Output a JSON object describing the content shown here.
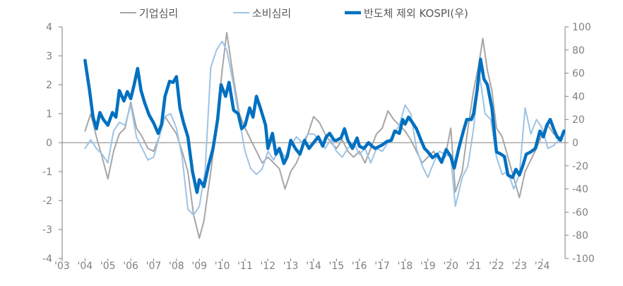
{
  "chart_data": {
    "type": "line",
    "title": "",
    "xlabel": "",
    "ylabel_left": "",
    "ylabel_right": "",
    "x_tick_labels": [
      "'03",
      "'04",
      "'05",
      "'06",
      "'07",
      "'08",
      "'09",
      "'10",
      "'11",
      "'12",
      "'13",
      "'14",
      "'15",
      "'16",
      "'17",
      "'18",
      "'19",
      "'20",
      "'21",
      "'22",
      "'23",
      "'24"
    ],
    "x_range": [
      2003,
      2025
    ],
    "y_left": {
      "ticks": [
        4,
        3,
        2,
        1,
        0,
        -1,
        -2,
        -3,
        -4
      ],
      "range": [
        -4,
        4
      ]
    },
    "y_right": {
      "ticks": [
        100,
        80,
        60,
        40,
        20,
        0,
        -20,
        -40,
        -60,
        -80,
        -100
      ],
      "range": [
        -100,
        100
      ]
    },
    "grid": false,
    "zero_line": true,
    "legend_position": "top",
    "series": [
      {
        "name": "기업심리",
        "axis": "left",
        "color": "#a6a6a6",
        "width": 2,
        "points": [
          [
            2004.0,
            0.4
          ],
          [
            2004.25,
            1.0
          ],
          [
            2004.5,
            0.2
          ],
          [
            2004.75,
            -0.5
          ],
          [
            2005.0,
            -1.25
          ],
          [
            2005.25,
            -0.3
          ],
          [
            2005.5,
            0.3
          ],
          [
            2005.75,
            0.5
          ],
          [
            2006.0,
            1.4
          ],
          [
            2006.25,
            0.5
          ],
          [
            2006.5,
            0.2
          ],
          [
            2006.75,
            -0.2
          ],
          [
            2007.0,
            -0.3
          ],
          [
            2007.25,
            0.2
          ],
          [
            2007.5,
            0.9
          ],
          [
            2007.75,
            0.6
          ],
          [
            2008.0,
            0.3
          ],
          [
            2008.25,
            -0.3
          ],
          [
            2008.5,
            -1.0
          ],
          [
            2008.75,
            -2.5
          ],
          [
            2009.0,
            -3.3
          ],
          [
            2009.2,
            -2.7
          ],
          [
            2009.5,
            -1.0
          ],
          [
            2009.75,
            0.5
          ],
          [
            2010.0,
            2.5
          ],
          [
            2010.2,
            3.8
          ],
          [
            2010.5,
            2.2
          ],
          [
            2010.75,
            1.0
          ],
          [
            2011.0,
            0.5
          ],
          [
            2011.25,
            0.1
          ],
          [
            2011.5,
            -0.3
          ],
          [
            2011.75,
            -0.7
          ],
          [
            2012.0,
            -0.5
          ],
          [
            2012.25,
            -0.7
          ],
          [
            2012.5,
            -0.9
          ],
          [
            2012.75,
            -1.6
          ],
          [
            2013.0,
            -1.0
          ],
          [
            2013.25,
            -0.7
          ],
          [
            2013.5,
            -0.2
          ],
          [
            2013.75,
            0.3
          ],
          [
            2014.0,
            0.9
          ],
          [
            2014.25,
            0.7
          ],
          [
            2014.5,
            0.3
          ],
          [
            2014.75,
            0.0
          ],
          [
            2015.0,
            -0.2
          ],
          [
            2015.25,
            0.1
          ],
          [
            2015.5,
            -0.3
          ],
          [
            2015.75,
            -0.5
          ],
          [
            2016.0,
            -0.3
          ],
          [
            2016.25,
            -0.7
          ],
          [
            2016.5,
            -0.2
          ],
          [
            2016.75,
            0.3
          ],
          [
            2017.0,
            0.5
          ],
          [
            2017.25,
            1.1
          ],
          [
            2017.5,
            0.8
          ],
          [
            2017.75,
            0.6
          ],
          [
            2018.0,
            0.4
          ],
          [
            2018.25,
            0.1
          ],
          [
            2018.5,
            -0.3
          ],
          [
            2018.75,
            -0.7
          ],
          [
            2019.0,
            -0.5
          ],
          [
            2019.25,
            -0.3
          ],
          [
            2019.5,
            -0.6
          ],
          [
            2019.75,
            -0.5
          ],
          [
            2020.0,
            0.5
          ],
          [
            2020.2,
            -1.7
          ],
          [
            2020.5,
            -1.0
          ],
          [
            2020.75,
            0.5
          ],
          [
            2021.0,
            1.8
          ],
          [
            2021.25,
            2.8
          ],
          [
            2021.4,
            3.6
          ],
          [
            2021.6,
            2.5
          ],
          [
            2021.8,
            1.8
          ],
          [
            2022.0,
            0.5
          ],
          [
            2022.25,
            0.2
          ],
          [
            2022.5,
            -0.5
          ],
          [
            2022.75,
            -1.2
          ],
          [
            2023.0,
            -1.9
          ],
          [
            2023.25,
            -1.0
          ],
          [
            2023.5,
            -0.6
          ],
          [
            2023.75,
            -0.2
          ],
          [
            2024.0,
            0.3
          ],
          [
            2024.25,
            0.6
          ],
          [
            2024.5,
            0.3
          ],
          [
            2024.75,
            0.2
          ]
        ]
      },
      {
        "name": "소비심리",
        "axis": "left",
        "color": "#9dc3e6",
        "width": 2,
        "points": [
          [
            2004.0,
            -0.2
          ],
          [
            2004.25,
            0.1
          ],
          [
            2004.5,
            -0.2
          ],
          [
            2004.75,
            -0.4
          ],
          [
            2005.0,
            -0.7
          ],
          [
            2005.25,
            0.4
          ],
          [
            2005.5,
            0.7
          ],
          [
            2005.75,
            0.6
          ],
          [
            2006.0,
            1.3
          ],
          [
            2006.25,
            0.2
          ],
          [
            2006.5,
            -0.2
          ],
          [
            2006.75,
            -0.6
          ],
          [
            2007.0,
            -0.5
          ],
          [
            2007.25,
            0.2
          ],
          [
            2007.5,
            0.9
          ],
          [
            2007.75,
            1.0
          ],
          [
            2008.0,
            0.5
          ],
          [
            2008.25,
            -0.5
          ],
          [
            2008.5,
            -2.3
          ],
          [
            2008.75,
            -2.5
          ],
          [
            2009.0,
            -2.2
          ],
          [
            2009.25,
            -1.0
          ],
          [
            2009.5,
            2.6
          ],
          [
            2009.75,
            3.2
          ],
          [
            2010.0,
            3.5
          ],
          [
            2010.2,
            3.2
          ],
          [
            2010.5,
            2.0
          ],
          [
            2010.75,
            0.8
          ],
          [
            2011.0,
            -0.3
          ],
          [
            2011.25,
            -0.9
          ],
          [
            2011.5,
            -1.1
          ],
          [
            2011.75,
            -0.9
          ],
          [
            2012.0,
            -0.3
          ],
          [
            2012.25,
            -0.6
          ],
          [
            2012.5,
            -0.2
          ],
          [
            2012.75,
            -0.5
          ],
          [
            2013.0,
            -0.1
          ],
          [
            2013.25,
            0.2
          ],
          [
            2013.5,
            0.0
          ],
          [
            2013.75,
            0.3
          ],
          [
            2014.0,
            0.3
          ],
          [
            2014.25,
            0.1
          ],
          [
            2014.5,
            -0.2
          ],
          [
            2014.75,
            0.1
          ],
          [
            2015.0,
            -0.3
          ],
          [
            2015.25,
            -0.5
          ],
          [
            2015.5,
            -0.2
          ],
          [
            2015.75,
            0.0
          ],
          [
            2016.0,
            -0.4
          ],
          [
            2016.25,
            -0.2
          ],
          [
            2016.5,
            -0.7
          ],
          [
            2016.75,
            -0.2
          ],
          [
            2017.0,
            -0.3
          ],
          [
            2017.25,
            0.0
          ],
          [
            2017.5,
            0.3
          ],
          [
            2017.75,
            0.6
          ],
          [
            2018.0,
            1.3
          ],
          [
            2018.25,
            1.0
          ],
          [
            2018.5,
            -0.2
          ],
          [
            2018.75,
            -0.8
          ],
          [
            2019.0,
            -1.2
          ],
          [
            2019.25,
            -0.7
          ],
          [
            2019.5,
            -0.3
          ],
          [
            2019.75,
            -0.4
          ],
          [
            2020.0,
            -0.5
          ],
          [
            2020.2,
            -2.2
          ],
          [
            2020.5,
            -1.2
          ],
          [
            2020.75,
            -0.8
          ],
          [
            2021.0,
            0.5
          ],
          [
            2021.25,
            2.4
          ],
          [
            2021.5,
            1.0
          ],
          [
            2021.75,
            0.8
          ],
          [
            2022.0,
            -0.5
          ],
          [
            2022.25,
            -1.1
          ],
          [
            2022.5,
            -1.0
          ],
          [
            2022.75,
            -1.6
          ],
          [
            2023.0,
            -1.1
          ],
          [
            2023.25,
            1.2
          ],
          [
            2023.5,
            0.3
          ],
          [
            2023.75,
            0.8
          ],
          [
            2024.0,
            0.5
          ],
          [
            2024.25,
            -0.2
          ],
          [
            2024.5,
            -0.1
          ],
          [
            2024.75,
            0.1
          ]
        ]
      },
      {
        "name": "반도체 제외 KOSPI(우)",
        "axis": "right",
        "color": "#0070c0",
        "width": 4.5,
        "points": [
          [
            2004.0,
            71
          ],
          [
            2004.2,
            45
          ],
          [
            2004.35,
            22
          ],
          [
            2004.5,
            12
          ],
          [
            2004.65,
            26
          ],
          [
            2004.8,
            20
          ],
          [
            2005.0,
            15
          ],
          [
            2005.2,
            26
          ],
          [
            2005.35,
            22
          ],
          [
            2005.5,
            45
          ],
          [
            2005.7,
            36
          ],
          [
            2005.85,
            44
          ],
          [
            2006.0,
            38
          ],
          [
            2006.15,
            50
          ],
          [
            2006.3,
            64
          ],
          [
            2006.45,
            45
          ],
          [
            2006.6,
            35
          ],
          [
            2006.8,
            24
          ],
          [
            2007.0,
            17
          ],
          [
            2007.2,
            8
          ],
          [
            2007.35,
            16
          ],
          [
            2007.5,
            40
          ],
          [
            2007.7,
            53
          ],
          [
            2007.85,
            52
          ],
          [
            2008.0,
            57
          ],
          [
            2008.15,
            30
          ],
          [
            2008.3,
            18
          ],
          [
            2008.5,
            5
          ],
          [
            2008.7,
            -25
          ],
          [
            2008.9,
            -43
          ],
          [
            2009.0,
            -32
          ],
          [
            2009.2,
            -38
          ],
          [
            2009.4,
            -20
          ],
          [
            2009.6,
            -5
          ],
          [
            2009.8,
            20
          ],
          [
            2009.95,
            50
          ],
          [
            2010.15,
            40
          ],
          [
            2010.3,
            52
          ],
          [
            2010.5,
            28
          ],
          [
            2010.7,
            25
          ],
          [
            2010.85,
            12
          ],
          [
            2011.0,
            15
          ],
          [
            2011.2,
            30
          ],
          [
            2011.35,
            22
          ],
          [
            2011.5,
            40
          ],
          [
            2011.7,
            28
          ],
          [
            2011.9,
            15
          ],
          [
            2012.0,
            -5
          ],
          [
            2012.2,
            8
          ],
          [
            2012.35,
            -10
          ],
          [
            2012.5,
            -5
          ],
          [
            2012.7,
            -18
          ],
          [
            2012.85,
            -12
          ],
          [
            2013.0,
            2
          ],
          [
            2013.2,
            -5
          ],
          [
            2013.4,
            -10
          ],
          [
            2013.6,
            2
          ],
          [
            2013.8,
            -5
          ],
          [
            2014.0,
            0
          ],
          [
            2014.2,
            5
          ],
          [
            2014.4,
            -3
          ],
          [
            2014.55,
            5
          ],
          [
            2014.7,
            8
          ],
          [
            2014.9,
            2
          ],
          [
            2015.0,
            2
          ],
          [
            2015.2,
            4
          ],
          [
            2015.35,
            12
          ],
          [
            2015.5,
            2
          ],
          [
            2015.7,
            -5
          ],
          [
            2015.9,
            4
          ],
          [
            2016.0,
            -3
          ],
          [
            2016.2,
            -5
          ],
          [
            2016.4,
            0
          ],
          [
            2016.55,
            -3
          ],
          [
            2016.7,
            -5
          ],
          [
            2016.9,
            -3
          ],
          [
            2017.0,
            -2
          ],
          [
            2017.2,
            1
          ],
          [
            2017.4,
            2
          ],
          [
            2017.55,
            10
          ],
          [
            2017.75,
            8
          ],
          [
            2017.9,
            20
          ],
          [
            2018.0,
            16
          ],
          [
            2018.15,
            22
          ],
          [
            2018.3,
            18
          ],
          [
            2018.5,
            12
          ],
          [
            2018.7,
            2
          ],
          [
            2018.85,
            -5
          ],
          [
            2019.0,
            -8
          ],
          [
            2019.2,
            -13
          ],
          [
            2019.4,
            -10
          ],
          [
            2019.6,
            -17
          ],
          [
            2019.8,
            -6
          ],
          [
            2020.0,
            -12
          ],
          [
            2020.15,
            -22
          ],
          [
            2020.35,
            -5
          ],
          [
            2020.55,
            10
          ],
          [
            2020.7,
            20
          ],
          [
            2020.9,
            20
          ],
          [
            2021.0,
            25
          ],
          [
            2021.15,
            45
          ],
          [
            2021.3,
            72
          ],
          [
            2021.45,
            55
          ],
          [
            2021.6,
            50
          ],
          [
            2021.8,
            30
          ],
          [
            2022.0,
            -8
          ],
          [
            2022.2,
            -10
          ],
          [
            2022.35,
            -12
          ],
          [
            2022.5,
            -28
          ],
          [
            2022.7,
            -30
          ],
          [
            2022.85,
            -23
          ],
          [
            2023.0,
            -28
          ],
          [
            2023.15,
            -20
          ],
          [
            2023.3,
            -10
          ],
          [
            2023.5,
            -8
          ],
          [
            2023.7,
            -5
          ],
          [
            2023.9,
            10
          ],
          [
            2024.05,
            5
          ],
          [
            2024.2,
            15
          ],
          [
            2024.35,
            20
          ],
          [
            2024.5,
            12
          ],
          [
            2024.65,
            5
          ],
          [
            2024.8,
            2
          ],
          [
            2024.95,
            10
          ]
        ]
      }
    ]
  }
}
